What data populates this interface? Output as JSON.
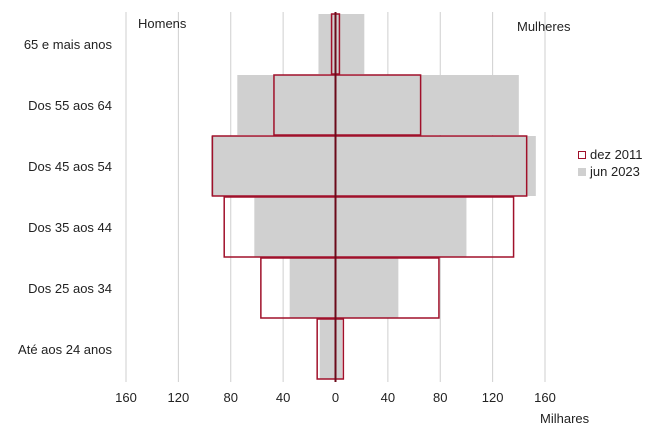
{
  "chart_data": {
    "type": "bar",
    "orientation": "horizontal",
    "categories": [
      "Até aos 24 anos",
      "Dos 25 aos 34",
      "Dos 35 aos 44",
      "Dos 45 aos 54",
      "Dos 55 aos 64",
      "65 e mais anos"
    ],
    "side_labels": {
      "left": "Homens",
      "right": "Mulheres"
    },
    "xlabel": "Milhares",
    "xlim": [
      -160,
      160
    ],
    "xticks": [
      -160,
      -120,
      -80,
      -40,
      0,
      40,
      80,
      120,
      160
    ],
    "xtick_labels": [
      "160",
      "120",
      "80",
      "40",
      "0",
      "40",
      "80",
      "120",
      "160"
    ],
    "grid": true,
    "legend_position": "right",
    "series": [
      {
        "name": "jun 2023",
        "style": "filled",
        "color": "#d0d0d0",
        "men": [
          12,
          35,
          62,
          95,
          75,
          13
        ],
        "women": [
          5,
          48,
          100,
          153,
          140,
          22
        ]
      },
      {
        "name": "dez 2011",
        "style": "outline",
        "color": "#a0102a",
        "men": [
          14,
          57,
          85,
          94,
          47,
          3
        ],
        "women": [
          6,
          79,
          136,
          146,
          65,
          3
        ]
      }
    ],
    "legend_order": [
      "dez 2011",
      "jun 2023"
    ]
  }
}
